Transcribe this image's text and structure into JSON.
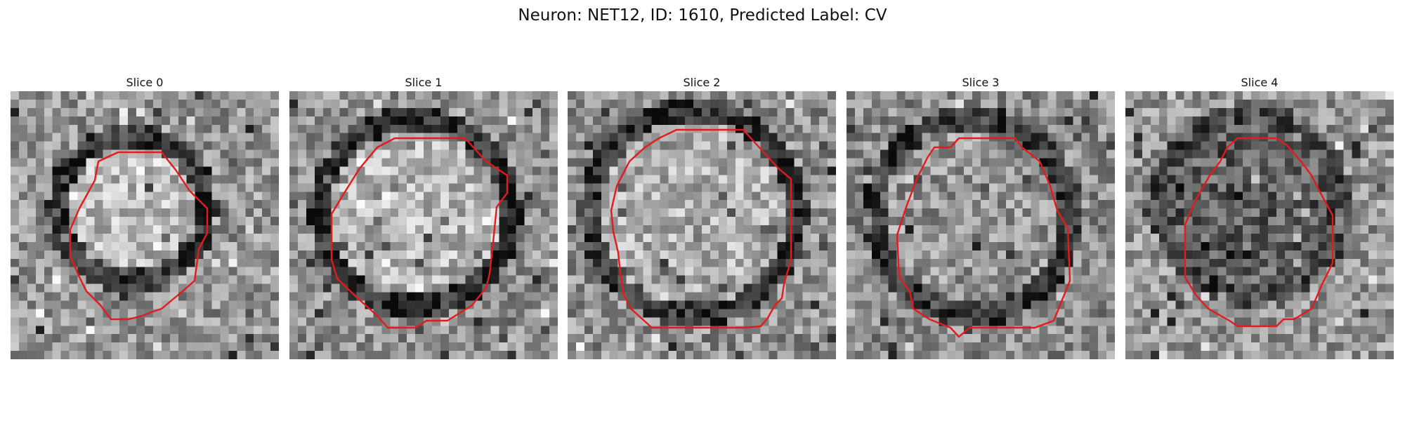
{
  "figure": {
    "title": "Neuron: NET12, ID: 1610, Predicted Label: CV"
  },
  "colors": {
    "contour": "#e41a1c",
    "background": "#ffffff"
  },
  "slices": [
    {
      "label": "Slice 0",
      "image": "grayscale-em-patch",
      "outline": "red-contour",
      "description": "bright rounded vesicle with dark rim"
    },
    {
      "label": "Slice 1",
      "image": "grayscale-em-patch",
      "outline": "red-contour",
      "description": "bright rounded vesicle with dark rim"
    },
    {
      "label": "Slice 2",
      "image": "grayscale-em-patch",
      "outline": "red-contour",
      "description": "bright rounded vesicle with dark rim"
    },
    {
      "label": "Slice 3",
      "image": "grayscale-em-patch",
      "outline": "red-contour",
      "description": "mid-gray textured vesicle"
    },
    {
      "label": "Slice 4",
      "image": "grayscale-em-patch",
      "outline": "red-contour",
      "description": "dark vesicle interior"
    }
  ]
}
